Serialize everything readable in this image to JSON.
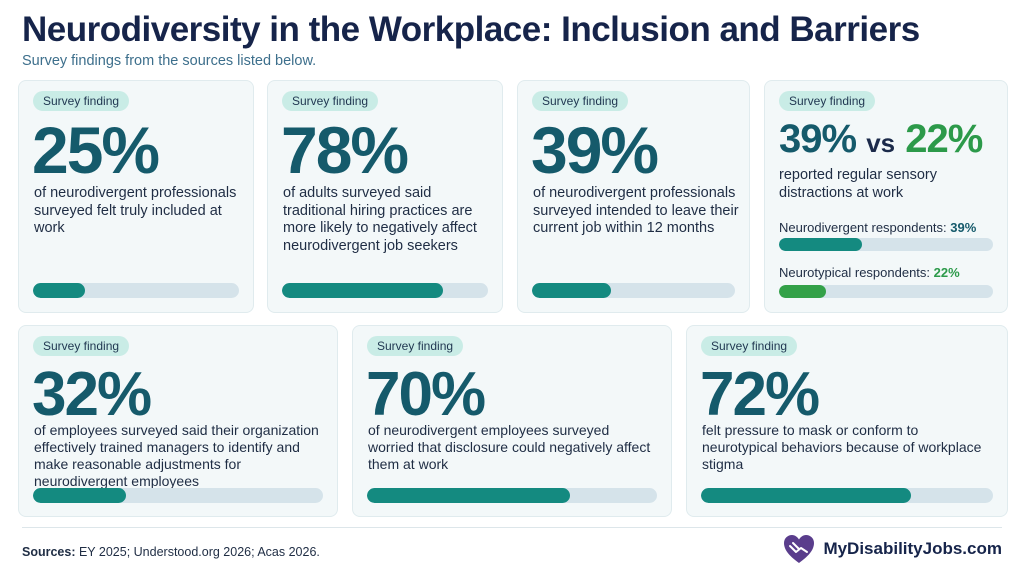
{
  "header": {
    "title": "Neurodiversity in the Workplace: Inclusion and Barriers",
    "subtitle": "Survey findings from the sources listed below."
  },
  "colors": {
    "primary": "#155a6b",
    "bar_fill": "#148a80",
    "bar_track": "#d5e3ea",
    "green": "#2c9a4a",
    "pill_bg": "#c9ece6",
    "card_bg": "#f3f8f9"
  },
  "cards": [
    {
      "badge": "Survey finding",
      "stat": "25%",
      "value": 0.25,
      "desc": "of neurodivergent professionals surveyed felt truly included at work"
    },
    {
      "badge": "Survey finding",
      "stat": "78%",
      "value": 0.78,
      "desc": "of adults surveyed said traditional hiring practices are more likely to negatively affect neurodivergent job seekers"
    },
    {
      "badge": "Survey finding",
      "stat": "39%",
      "value": 0.39,
      "desc": "of neurodivergent professionals surveyed intended to leave their current job within 12 months"
    },
    {
      "badge": "Survey finding",
      "stat": "32%",
      "value": 0.32,
      "desc": "of employees surveyed said their organization effectively trained managers to identify and make reasonable adjustments for neurodivergent employees"
    },
    {
      "badge": "Survey finding",
      "stat": "70%",
      "value": 0.7,
      "desc": "of neurodivergent employees surveyed worried that disclosure could negatively affect them at work"
    },
    {
      "badge": "Survey finding",
      "stat": "72%",
      "value": 0.72,
      "desc": "felt pressure to mask or conform to neurotypical behaviors because of workplace stigma"
    }
  ],
  "comparison": {
    "badge": "Survey finding",
    "stat_a": "39%",
    "vs": "vs",
    "stat_b": "22%",
    "desc": "reported regular sensory distractions at work",
    "label_a": "Neurodivergent respondents: ",
    "pct_a": "39%",
    "value_a": 0.39,
    "label_b": "Neurotypical respondents: ",
    "pct_b": "22%",
    "value_b": 0.22
  },
  "footer": {
    "sources_label": "Sources:",
    "sources_text": " EY 2025; Understood.org 2026; Acas 2026.",
    "brand": "MyDisabilityJobs.com",
    "logo_icon": "heart-hands-icon"
  }
}
